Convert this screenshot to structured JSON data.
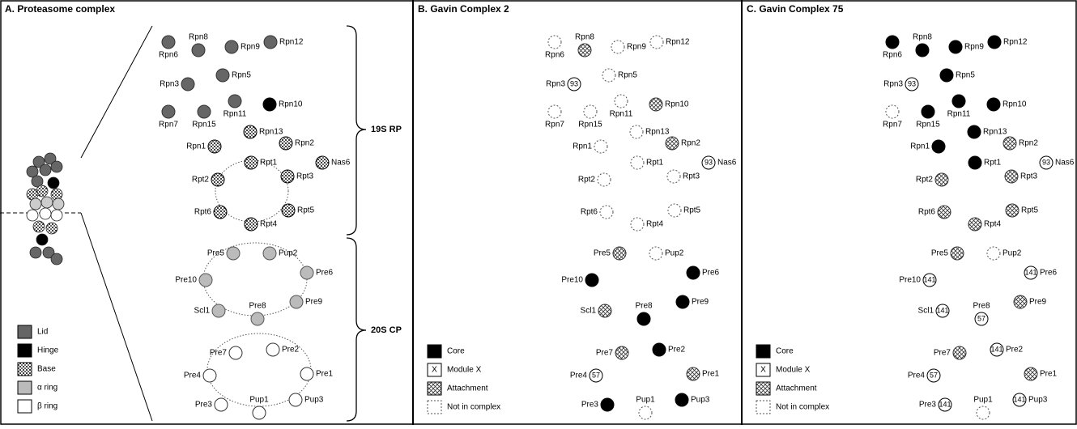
{
  "panels": [
    {
      "title": "A. Proteasome complex",
      "brackets": [
        "19S RP",
        "20S CP"
      ],
      "legend": [
        {
          "label": "Lid"
        },
        {
          "label": "Hinge"
        },
        {
          "label": "Base"
        },
        {
          "label": "α ring"
        },
        {
          "label": "β ring"
        }
      ],
      "nodes": [
        {
          "label": "Rpn6"
        },
        {
          "label": "Rpn8"
        },
        {
          "label": "Rpn9"
        },
        {
          "label": "Rpn12"
        },
        {
          "label": "Rpn3"
        },
        {
          "label": "Rpn5"
        },
        {
          "label": "Rpn7"
        },
        {
          "label": "Rpn15"
        },
        {
          "label": "Rpn11"
        },
        {
          "label": "Rpn10"
        },
        {
          "label": "Rpn13"
        },
        {
          "label": "Rpn1"
        },
        {
          "label": "Rpn2"
        },
        {
          "label": "Rpt1"
        },
        {
          "label": "Nas6"
        },
        {
          "label": "Rpt2"
        },
        {
          "label": "Rpt3"
        },
        {
          "label": "Rpt6"
        },
        {
          "label": "Rpt5"
        },
        {
          "label": "Rpt4"
        },
        {
          "label": "Pre5"
        },
        {
          "label": "Pup2"
        },
        {
          "label": "Pre10"
        },
        {
          "label": "Pre6"
        },
        {
          "label": "Pre8"
        },
        {
          "label": "Scl1"
        },
        {
          "label": "Pre9"
        },
        {
          "label": "Pre7"
        },
        {
          "label": "Pre2"
        },
        {
          "label": "Pre4"
        },
        {
          "label": "Pre1"
        },
        {
          "label": "Pup1"
        },
        {
          "label": "Pre3"
        },
        {
          "label": "Pup3"
        }
      ]
    },
    {
      "title": "B. Gavin Complex 2",
      "legend": [
        {
          "label": "Core"
        },
        {
          "label": "Module X",
          "symbol": "X"
        },
        {
          "label": "Attachment"
        },
        {
          "label": "Not in complex"
        }
      ],
      "nodes": [
        {
          "label": "Rpn6"
        },
        {
          "label": "Rpn8"
        },
        {
          "label": "Rpn9"
        },
        {
          "label": "Rpn12"
        },
        {
          "label": "Rpn3",
          "module": "93"
        },
        {
          "label": "Rpn5"
        },
        {
          "label": "Rpn7"
        },
        {
          "label": "Rpn15"
        },
        {
          "label": "Rpn11"
        },
        {
          "label": "Rpn10"
        },
        {
          "label": "Rpn13"
        },
        {
          "label": "Rpn1"
        },
        {
          "label": "Rpn2"
        },
        {
          "label": "Rpt1"
        },
        {
          "label": "Nas6",
          "module": "93"
        },
        {
          "label": "Rpt2"
        },
        {
          "label": "Rpt3"
        },
        {
          "label": "Rpt6"
        },
        {
          "label": "Rpt5"
        },
        {
          "label": "Rpt4"
        },
        {
          "label": "Pre5"
        },
        {
          "label": "Pup2"
        },
        {
          "label": "Pre10"
        },
        {
          "label": "Pre6"
        },
        {
          "label": "Pre8"
        },
        {
          "label": "Scl1"
        },
        {
          "label": "Pre9"
        },
        {
          "label": "Pre7"
        },
        {
          "label": "Pre2"
        },
        {
          "label": "Pre4",
          "module": "57"
        },
        {
          "label": "Pre1"
        },
        {
          "label": "Pup1"
        },
        {
          "label": "Pre3"
        },
        {
          "label": "Pup3"
        }
      ]
    },
    {
      "title": "C. Gavin Complex 75",
      "legend": [
        {
          "label": "Core"
        },
        {
          "label": "Module X",
          "symbol": "X"
        },
        {
          "label": "Attachment"
        },
        {
          "label": "Not in complex"
        }
      ],
      "nodes": [
        {
          "label": "Rpn6"
        },
        {
          "label": "Rpn8"
        },
        {
          "label": "Rpn9"
        },
        {
          "label": "Rpn12"
        },
        {
          "label": "Rpn3",
          "module": "93"
        },
        {
          "label": "Rpn5"
        },
        {
          "label": "Rpn7"
        },
        {
          "label": "Rpn15"
        },
        {
          "label": "Rpn11"
        },
        {
          "label": "Rpn10"
        },
        {
          "label": "Rpn13"
        },
        {
          "label": "Rpn1"
        },
        {
          "label": "Rpn2"
        },
        {
          "label": "Rpt1"
        },
        {
          "label": "Nas6",
          "module": "93"
        },
        {
          "label": "Rpt2"
        },
        {
          "label": "Rpt3"
        },
        {
          "label": "Rpt6"
        },
        {
          "label": "Rpt5"
        },
        {
          "label": "Rpt4"
        },
        {
          "label": "Pre5"
        },
        {
          "label": "Pup2"
        },
        {
          "label": "Pre10",
          "module": "141"
        },
        {
          "label": "Pre6",
          "module": "141"
        },
        {
          "label": "Pre8",
          "module": "57"
        },
        {
          "label": "Scl1",
          "module": "141"
        },
        {
          "label": "Pre9"
        },
        {
          "label": "Pre7"
        },
        {
          "label": "Pre2",
          "module": "141"
        },
        {
          "label": "Pre4",
          "module": "57"
        },
        {
          "label": "Pre1"
        },
        {
          "label": "Pup1"
        },
        {
          "label": "Pre3",
          "module": "141"
        },
        {
          "label": "Pup3",
          "module": "141"
        }
      ]
    }
  ]
}
